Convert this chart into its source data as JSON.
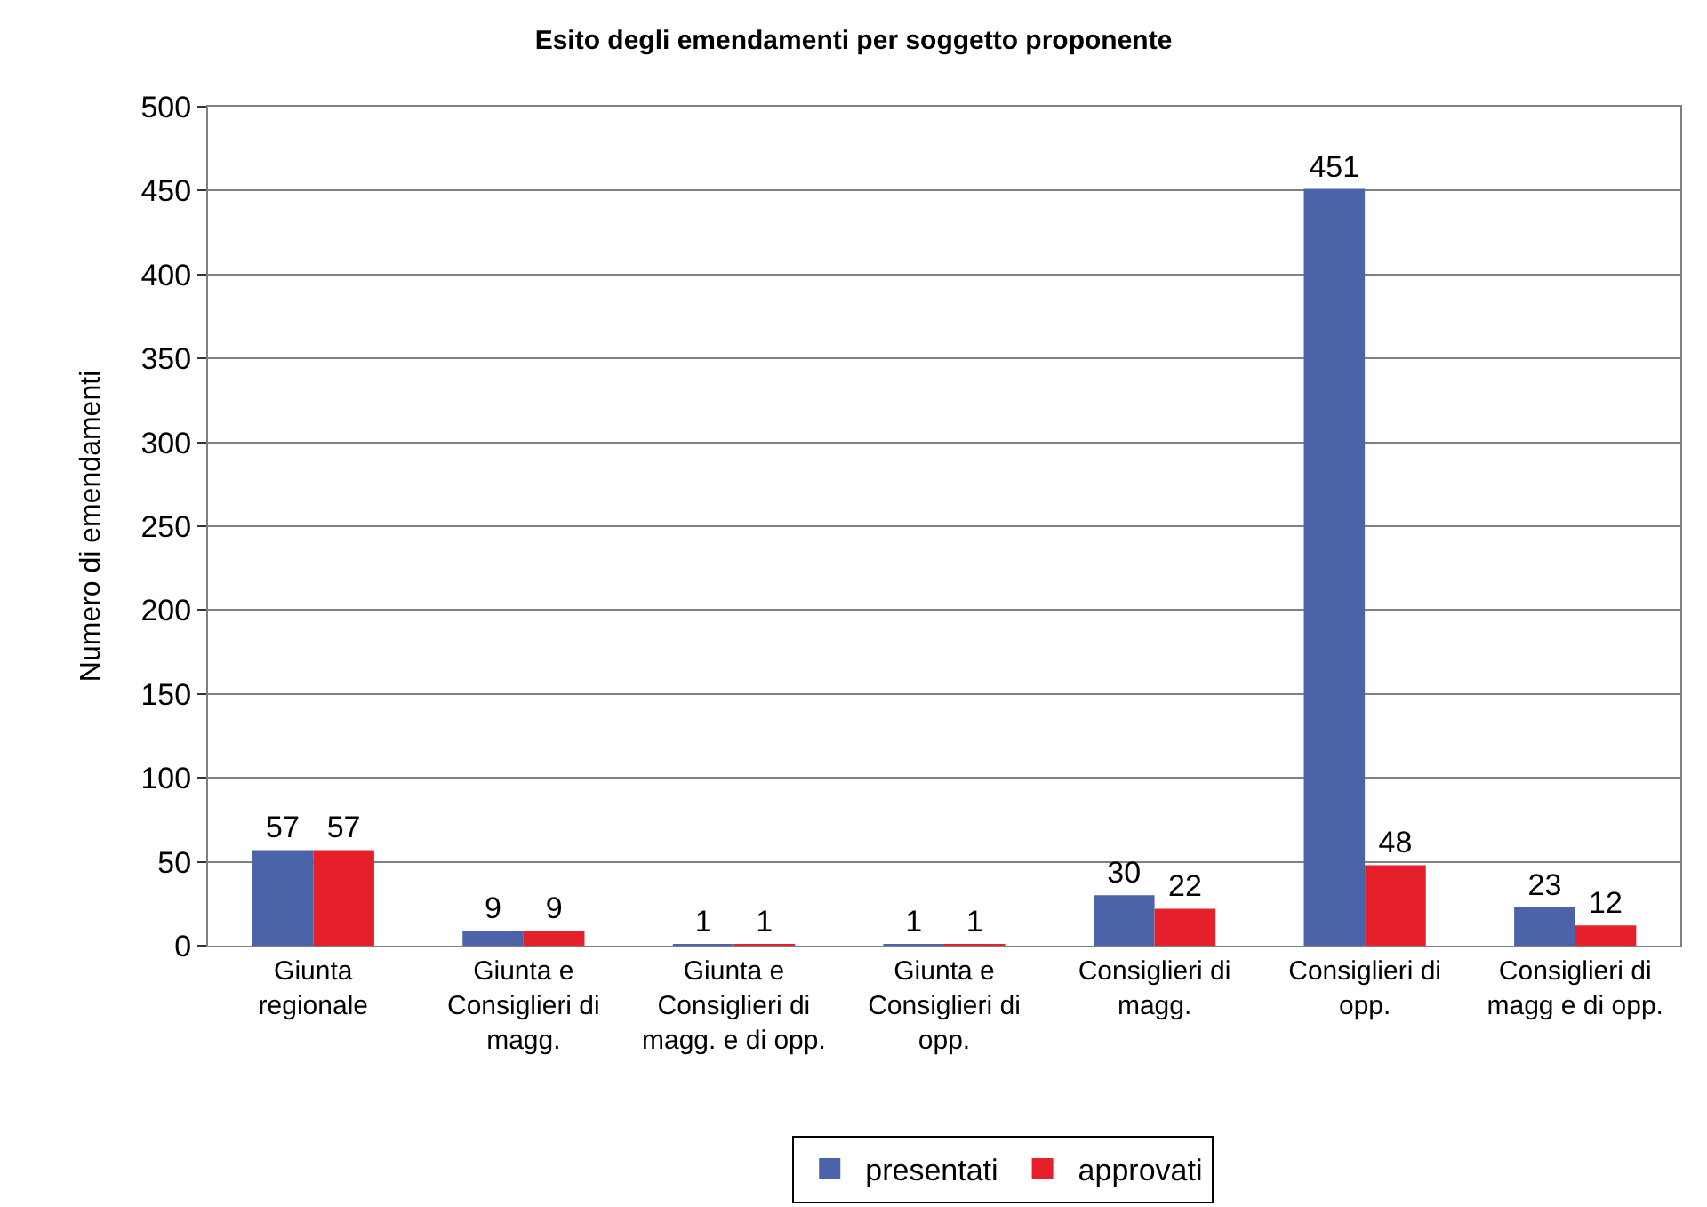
{
  "chart_data": {
    "type": "bar",
    "title": "Esito degli emendamenti per soggetto proponente",
    "ylabel": "Numero di emendamenti",
    "categories": [
      "Giunta regionale",
      "Giunta e Consiglieri di magg.",
      "Giunta e Consiglieri di magg. e di opp.",
      "Giunta e Consiglieri di opp.",
      "Consiglieri di magg.",
      "Consiglieri di opp.",
      "Consiglieri di magg e di opp."
    ],
    "series": [
      {
        "name": "presentati",
        "color": "#4a63a9",
        "values": [
          57,
          9,
          1,
          1,
          30,
          451,
          23
        ]
      },
      {
        "name": "approvati",
        "color": "#e5202a",
        "values": [
          57,
          9,
          1,
          1,
          22,
          48,
          12
        ]
      }
    ],
    "ylim": [
      0,
      500
    ],
    "yticks": [
      0,
      50,
      100,
      150,
      200,
      250,
      300,
      350,
      400,
      450,
      500
    ],
    "grid": "y",
    "legend": "bottom",
    "data_labels": true
  }
}
